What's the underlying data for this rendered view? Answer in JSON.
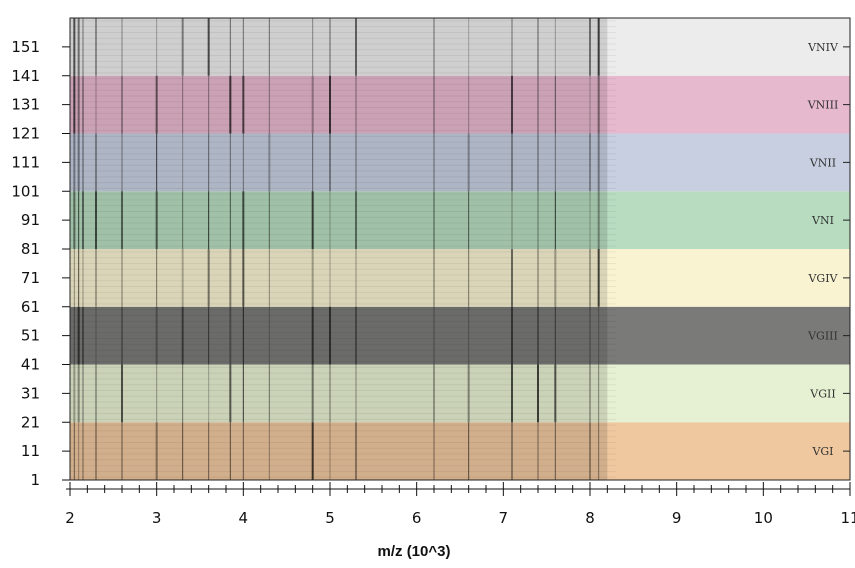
{
  "chart_data": {
    "type": "heatmap",
    "title": "",
    "xlabel": "m/z (10^3)",
    "ylabel": "",
    "xlim": [
      2,
      11
    ],
    "ylim": [
      1,
      161
    ],
    "x_ticks": [
      "2",
      "3",
      "4",
      "5",
      "6",
      "7",
      "8",
      "9",
      "10",
      "11"
    ],
    "y_ticks": [
      "1",
      "11",
      "21",
      "31",
      "41",
      "51",
      "61",
      "71",
      "81",
      "91",
      "101",
      "111",
      "121",
      "131",
      "141",
      "151"
    ],
    "groups": [
      {
        "name": "VGI",
        "rows": [
          1,
          20
        ],
        "color": "#f0c8a0"
      },
      {
        "name": "VGII",
        "rows": [
          21,
          40
        ],
        "color": "#e6f0d2"
      },
      {
        "name": "VGIII",
        "rows": [
          41,
          60
        ],
        "color": "#7a7a78"
      },
      {
        "name": "VGIV",
        "rows": [
          61,
          80
        ],
        "color": "#f9f3d2"
      },
      {
        "name": "VNI",
        "rows": [
          81,
          100
        ],
        "color": "#b7dcc0"
      },
      {
        "name": "VNII",
        "rows": [
          101,
          120
        ],
        "color": "#c7cfe0"
      },
      {
        "name": "VNIII",
        "rows": [
          121,
          140
        ],
        "color": "#e7b9cf"
      },
      {
        "name": "VNIV",
        "rows": [
          141,
          160
        ],
        "color": "#ececec"
      }
    ],
    "peak_positions_mz": [
      2.05,
      2.1,
      2.15,
      2.3,
      2.6,
      3.0,
      3.3,
      3.6,
      3.85,
      4.0,
      4.3,
      4.8,
      5.0,
      5.3,
      6.2,
      6.6,
      7.1,
      7.4,
      7.6,
      8.0,
      8.1
    ],
    "grid": false,
    "legend": "none"
  }
}
